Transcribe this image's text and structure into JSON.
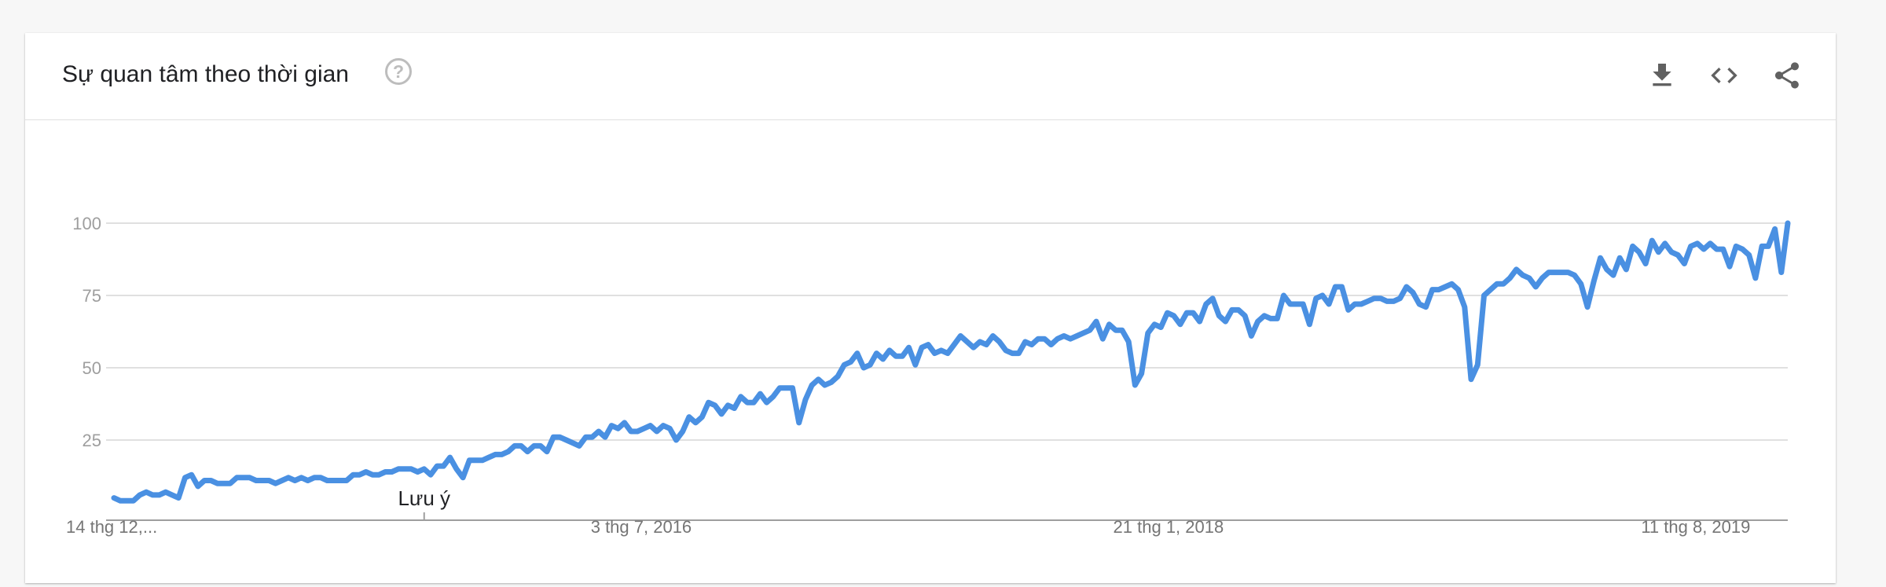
{
  "header": {
    "title": "Sự quan tâm theo thời gian",
    "help_icon": "help-circle-icon",
    "tools": [
      {
        "name": "download-icon"
      },
      {
        "name": "embed-code-icon"
      },
      {
        "name": "share-icon"
      }
    ]
  },
  "colors": {
    "line": "#4a90e2",
    "grid": "#e0e0e0",
    "axis": "#9e9e9e",
    "tick_text": "#9e9e9e",
    "date_text": "#757575",
    "note_text": "#202124"
  },
  "chart_data": {
    "type": "line",
    "x_labels": [
      "14 thg 12,...",
      "3 thg 7, 2016",
      "21 thg 1, 2018",
      "11 thg 8, 2019"
    ],
    "yticks": [
      25,
      50,
      75,
      100
    ],
    "ylim": [
      0,
      100
    ],
    "grid": true,
    "annotation": {
      "label": "Lưu ý",
      "index": 48
    },
    "series": [
      {
        "values": [
          5,
          4,
          4,
          4,
          6,
          7,
          6,
          6,
          7,
          6,
          5,
          12,
          13,
          9,
          11,
          11,
          10,
          10,
          10,
          12,
          12,
          12,
          11,
          11,
          11,
          10,
          11,
          12,
          11,
          12,
          11,
          12,
          12,
          11,
          11,
          11,
          11,
          13,
          13,
          14,
          13,
          13,
          14,
          14,
          15,
          15,
          15,
          14,
          15,
          13,
          16,
          16,
          19,
          15,
          12,
          18,
          18,
          18,
          19,
          20,
          20,
          21,
          23,
          23,
          21,
          23,
          23,
          21,
          26,
          26,
          25,
          24,
          23,
          26,
          26,
          28,
          26,
          30,
          29,
          31,
          28,
          28,
          29,
          30,
          28,
          30,
          29,
          25,
          28,
          33,
          31,
          33,
          38,
          37,
          34,
          37,
          36,
          40,
          38,
          38,
          41,
          38,
          40,
          43,
          43,
          43,
          31,
          39,
          44,
          46,
          44,
          45,
          47,
          51,
          52,
          55,
          50,
          51,
          55,
          53,
          56,
          54,
          54,
          57,
          51,
          57,
          58,
          55,
          56,
          55,
          58,
          61,
          59,
          57,
          59,
          58,
          61,
          59,
          56,
          55,
          55,
          59,
          58,
          60,
          60,
          58,
          60,
          61,
          60,
          61,
          62,
          63,
          66,
          60,
          65,
          63,
          63,
          59,
          44,
          48,
          62,
          65,
          64,
          69,
          68,
          65,
          69,
          69,
          66,
          72,
          74,
          68,
          66,
          70,
          70,
          68,
          61,
          66,
          68,
          67,
          67,
          75,
          72,
          72,
          72,
          65,
          74,
          75,
          72,
          78,
          78,
          70,
          72,
          72,
          73,
          74,
          74,
          73,
          73,
          74,
          78,
          76,
          72,
          71,
          77,
          77,
          78,
          79,
          77,
          71,
          46,
          51,
          75,
          77,
          79,
          79,
          81,
          84,
          82,
          81,
          78,
          81,
          83,
          83,
          83,
          83,
          82,
          79,
          71,
          80,
          88,
          84,
          82,
          88,
          84,
          92,
          90,
          86,
          94,
          90,
          93,
          90,
          89,
          86,
          92,
          93,
          91,
          93,
          91,
          91,
          85,
          92,
          91,
          89,
          81,
          92,
          92,
          98,
          83,
          100
        ]
      }
    ]
  }
}
